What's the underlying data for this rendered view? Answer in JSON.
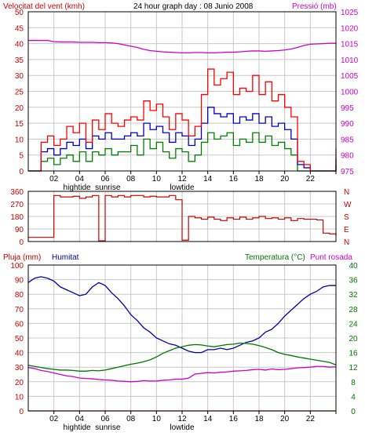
{
  "header": {
    "wind_label": "Velocitat del vent (kmh)",
    "title": "24 hour graph day : 08 Junio 2008",
    "pressure_label": "Pressió (mb)"
  },
  "colors": {
    "frame": "#000000",
    "grid": "#c8c8c8",
    "wind_gust": "#ff0000",
    "wind_avg": "#0000cc",
    "wind_min": "#008000",
    "pressure": "#cc00cc",
    "direction": "#cc0000",
    "rain": "#cc0000",
    "humidity": "#0000aa",
    "temperature": "#007700",
    "dewpoint": "#cc00cc"
  },
  "x_ticks": [
    "02",
    "04",
    "06",
    "08",
    "10",
    "12",
    "14",
    "16",
    "18",
    "20",
    "22",
    ""
  ],
  "x_annotations": {
    "top": [
      "hightide",
      "sunrise",
      "lowtide"
    ],
    "bottom": [
      "hightide",
      "sunrise",
      "lowtide"
    ]
  },
  "direction_labels": [
    "N",
    "W",
    "S",
    "E",
    "N"
  ],
  "lower_header": {
    "rain_label": "Pluja (mm)",
    "humidity_label": "Humitat",
    "temp_label": "Temperatura (°C)",
    "dew_label": "Punt rosada"
  },
  "chart_data": [
    {
      "type": "line",
      "x_unit": "hour",
      "x": [
        0,
        0.5,
        1,
        1.5,
        2,
        2.5,
        3,
        3.5,
        4,
        4.5,
        5,
        5.5,
        6,
        6.5,
        7,
        7.5,
        8,
        8.5,
        9,
        9.5,
        10,
        10.5,
        11,
        11.5,
        12,
        12.5,
        13,
        13.5,
        14,
        14.5,
        15,
        15.5,
        16,
        16.5,
        17,
        17.5,
        18,
        18.5,
        19,
        19.5,
        20,
        20.5,
        21,
        21.5,
        22,
        22.5,
        23,
        23.5,
        24
      ],
      "ylabel_left": "Velocitat del vent (kmh)",
      "ylabel_right": "Pressió (mb)",
      "ylim_left": [
        0,
        50
      ],
      "yticks_left": [
        0,
        5,
        10,
        15,
        20,
        25,
        30,
        35,
        40,
        45,
        50
      ],
      "ylim_right": [
        975,
        1025
      ],
      "yticks_right": [
        975,
        980,
        985,
        990,
        995,
        1000,
        1005,
        1010,
        1015,
        1020,
        1025
      ],
      "series": [
        {
          "name": "gust",
          "axis": "left",
          "values": [
            0,
            0,
            9,
            11,
            8,
            10,
            14,
            12,
            15,
            9,
            16,
            13,
            18,
            15,
            14,
            16,
            17,
            16,
            22,
            19,
            21,
            17,
            13,
            18,
            16,
            11,
            14,
            24,
            32,
            27,
            29,
            31,
            24,
            26,
            25,
            30,
            24,
            28,
            22,
            24,
            20,
            17,
            3,
            2,
            0,
            0,
            0,
            0,
            7
          ]
        },
        {
          "name": "avg",
          "axis": "left",
          "values": [
            0,
            0,
            6,
            7,
            5,
            7,
            9,
            8,
            10,
            7,
            11,
            10,
            12,
            10,
            10,
            11,
            12,
            11,
            15,
            13,
            14,
            12,
            9,
            12,
            11,
            8,
            10,
            15,
            20,
            18,
            17,
            18,
            15,
            17,
            16,
            18,
            15,
            17,
            14,
            15,
            13,
            10,
            2,
            1,
            0,
            0,
            0,
            0,
            4
          ]
        },
        {
          "name": "min",
          "axis": "left",
          "values": [
            0,
            0,
            3,
            4,
            2,
            4,
            5,
            3,
            6,
            3,
            6,
            5,
            7,
            5,
            6,
            6,
            8,
            5,
            10,
            7,
            9,
            6,
            4,
            7,
            6,
            3,
            5,
            9,
            12,
            10,
            11,
            12,
            8,
            10,
            9,
            12,
            9,
            11,
            8,
            9,
            7,
            5,
            0,
            0,
            0,
            0,
            0,
            0,
            2
          ]
        },
        {
          "name": "pressure",
          "axis": "right",
          "values": [
            1016,
            1016,
            1016,
            1016,
            1015.6,
            1015.5,
            1015.5,
            1015.5,
            1015.4,
            1015.4,
            1015.4,
            1015.3,
            1015.3,
            1015.2,
            1015,
            1014.6,
            1014.2,
            1013.8,
            1013.2,
            1012.8,
            1012.6,
            1012.4,
            1012.3,
            1012.2,
            1012.1,
            1012.1,
            1012.2,
            1012.2,
            1012.1,
            1012.1,
            1012.2,
            1012.3,
            1012.3,
            1012.4,
            1012.6,
            1012.7,
            1012.7,
            1012.6,
            1012.7,
            1012.8,
            1013,
            1013.3,
            1013.8,
            1014.4,
            1014.8,
            1014.9,
            1015,
            1015.1,
            1015.1
          ]
        }
      ]
    },
    {
      "type": "line",
      "x_unit": "hour",
      "x": [
        0,
        0.5,
        1,
        1.5,
        2,
        2.5,
        3,
        3.5,
        4,
        4.5,
        5,
        5.5,
        6,
        6.5,
        7,
        7.5,
        8,
        8.5,
        9,
        9.5,
        10,
        10.5,
        11,
        11.5,
        12,
        12.5,
        13,
        13.5,
        14,
        14.5,
        15,
        15.5,
        16,
        16.5,
        17,
        17.5,
        18,
        18.5,
        19,
        19.5,
        20,
        20.5,
        21,
        21.5,
        22,
        22.5,
        23,
        23.5,
        24
      ],
      "ylim": [
        0,
        360
      ],
      "yticks": [
        0,
        90,
        180,
        270,
        360
      ],
      "series": [
        {
          "name": "direction",
          "values": [
            30,
            30,
            30,
            30,
            330,
            320,
            320,
            325,
            310,
            320,
            330,
            5,
            330,
            320,
            330,
            320,
            330,
            330,
            320,
            325,
            320,
            320,
            330,
            300,
            10,
            180,
            170,
            160,
            175,
            160,
            150,
            170,
            160,
            175,
            160,
            170,
            180,
            165,
            170,
            160,
            170,
            150,
            165,
            160,
            160,
            155,
            60,
            55,
            40
          ]
        }
      ]
    },
    {
      "type": "line",
      "x_unit": "hour",
      "x": [
        0,
        0.5,
        1,
        1.5,
        2,
        2.5,
        3,
        3.5,
        4,
        4.5,
        5,
        5.5,
        6,
        6.5,
        7,
        7.5,
        8,
        8.5,
        9,
        9.5,
        10,
        10.5,
        11,
        11.5,
        12,
        12.5,
        13,
        13.5,
        14,
        14.5,
        15,
        15.5,
        16,
        16.5,
        17,
        17.5,
        18,
        18.5,
        19,
        19.5,
        20,
        20.5,
        21,
        21.5,
        22,
        22.5,
        23,
        23.5,
        24
      ],
      "ylabel_left": "Pluja (mm) / Humitat",
      "ylabel_right": "Temperatura (°C) / Punt rosada",
      "ylim_left": [
        0,
        100
      ],
      "yticks_left": [
        0,
        10,
        20,
        30,
        40,
        50,
        60,
        70,
        80,
        90,
        100
      ],
      "ylim_right": [
        0,
        40
      ],
      "yticks_right": [
        0,
        4,
        8,
        12,
        16,
        20,
        24,
        28,
        32,
        36,
        40
      ],
      "series": [
        {
          "name": "rain",
          "axis": "left",
          "values": [
            0,
            0,
            0,
            0,
            0,
            0,
            0,
            0,
            0,
            0,
            0,
            0,
            0,
            0,
            0,
            0,
            0,
            0,
            0,
            0,
            0,
            0,
            0,
            0,
            0,
            0,
            0,
            0,
            0,
            0,
            0,
            0,
            0,
            0,
            0,
            0,
            0,
            0,
            0,
            0,
            0,
            0,
            0,
            0,
            0,
            0,
            0,
            0,
            0
          ]
        },
        {
          "name": "humidity",
          "axis": "left",
          "values": [
            88,
            91,
            92,
            91,
            89,
            85,
            83,
            81,
            79,
            80,
            85,
            88,
            86,
            81,
            77,
            72,
            66,
            62,
            57,
            54,
            50,
            48,
            46,
            45,
            43,
            41,
            40,
            40,
            42,
            42,
            43,
            42,
            43,
            45,
            47,
            48,
            50,
            54,
            56,
            60,
            65,
            69,
            73,
            77,
            80,
            82,
            85,
            86,
            86
          ]
        },
        {
          "name": "temperature",
          "axis": "right",
          "values": [
            12.5,
            12.2,
            11.9,
            11.6,
            11.4,
            11.2,
            11.2,
            11.1,
            10.9,
            10.9,
            11.1,
            11.0,
            11.2,
            11.6,
            12.0,
            12.4,
            12.8,
            13.1,
            13.5,
            14.0,
            14.8,
            15.8,
            16.5,
            17.2,
            17.6,
            18.0,
            18.2,
            18.1,
            17.8,
            17.6,
            17.9,
            18.2,
            18.3,
            18.6,
            18.5,
            18.3,
            17.9,
            17.4,
            16.8,
            16.0,
            15.5,
            15.2,
            14.8,
            14.5,
            14.2,
            13.9,
            13.6,
            13.3,
            12.6
          ]
        },
        {
          "name": "dewpoint",
          "axis": "right",
          "values": [
            11.9,
            11.6,
            11.1,
            10.8,
            10.4,
            10.0,
            9.6,
            9.4,
            9.0,
            8.9,
            8.8,
            8.6,
            8.5,
            8.4,
            8.2,
            8.1,
            8.0,
            8.1,
            8.3,
            8.2,
            8.2,
            8.4,
            8.5,
            8.7,
            8.7,
            9.0,
            10.1,
            10.3,
            10.5,
            10.4,
            10.6,
            10.7,
            10.9,
            11.0,
            11.1,
            11.3,
            11.4,
            11.2,
            11.5,
            11.3,
            11.4,
            11.6,
            11.8,
            11.9,
            12.0,
            12.2,
            12.2,
            12.0,
            12.1
          ]
        }
      ]
    }
  ]
}
